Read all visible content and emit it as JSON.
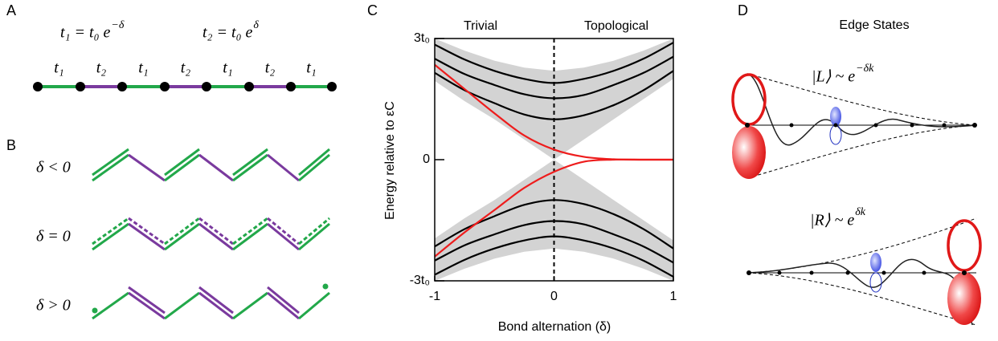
{
  "panel_labels": [
    "A",
    "B",
    "C",
    "D"
  ],
  "panel_a": {
    "eq1": {
      "base": "t₁ = t₀ e",
      "exponent": "−δ"
    },
    "eq2": {
      "base": "t₂ = t₀ e",
      "exponent": "δ"
    },
    "bond_labels": [
      "t₁",
      "t₂",
      "t₁",
      "t₂",
      "t₁",
      "t₂",
      "t₁"
    ]
  },
  "panel_b": {
    "rows": [
      "δ < 0",
      "δ = 0",
      "δ > 0"
    ]
  },
  "chart_data": {
    "type": "line",
    "top_labels": [
      "Trivial",
      "Topological"
    ],
    "xlabel": "Bond alternation (δ)",
    "ylabel": "Energy relative to εC",
    "x": [
      -1,
      -0.75,
      -0.5,
      -0.25,
      0,
      0.25,
      0.5,
      0.75,
      1
    ],
    "xlim": [
      -1,
      1
    ],
    "xticks": [
      -1,
      0,
      1
    ],
    "ylim": [
      -3,
      3
    ],
    "yticks": [
      {
        "value": 3,
        "label": "3t₀"
      },
      0,
      {
        "value": -3,
        "label": "-3t₀"
      }
    ],
    "bands": [
      {
        "color": "#d3d3d3",
        "upper": [
          3.0,
          2.7,
          2.45,
          2.28,
          2.2,
          2.28,
          2.45,
          2.7,
          3.0
        ],
        "lower": [
          1.95,
          1.45,
          1.0,
          0.5,
          0,
          0.5,
          1.0,
          1.5,
          2.0
        ]
      },
      {
        "color": "#d3d3d3",
        "upper": [
          -1.95,
          -1.45,
          -1.0,
          -0.5,
          0,
          -0.5,
          -1.0,
          -1.5,
          -2.0
        ],
        "lower": [
          -3.0,
          -2.7,
          -2.45,
          -2.28,
          -2.2,
          -2.28,
          -2.45,
          -2.7,
          -3.0
        ]
      }
    ],
    "series": [
      {
        "color": "#000000",
        "values": [
          2.85,
          2.48,
          2.2,
          2.0,
          1.9,
          2.0,
          2.2,
          2.5,
          2.9
        ]
      },
      {
        "color": "#000000",
        "values": [
          2.5,
          2.12,
          1.85,
          1.62,
          1.52,
          1.6,
          1.85,
          2.15,
          2.55
        ]
      },
      {
        "color": "#000000",
        "values": [
          2.15,
          1.72,
          1.4,
          1.12,
          1.0,
          1.1,
          1.35,
          1.72,
          2.2
        ]
      },
      {
        "color": "#000000",
        "values": [
          -2.15,
          -1.72,
          -1.4,
          -1.12,
          -1.0,
          -1.1,
          -1.35,
          -1.72,
          -2.2
        ]
      },
      {
        "color": "#000000",
        "values": [
          -2.5,
          -2.12,
          -1.85,
          -1.62,
          -1.52,
          -1.6,
          -1.85,
          -2.15,
          -2.55
        ]
      },
      {
        "color": "#000000",
        "values": [
          -2.85,
          -2.48,
          -2.2,
          -2.0,
          -1.9,
          -2.0,
          -2.2,
          -2.5,
          -2.9
        ]
      },
      {
        "color": "#ee1c1c",
        "values": [
          2.35,
          1.75,
          1.15,
          0.6,
          0.25,
          0.07,
          0.01,
          0,
          0
        ]
      },
      {
        "color": "#ee1c1c",
        "values": [
          -2.4,
          -1.8,
          -1.25,
          -0.7,
          -0.3,
          -0.05,
          0,
          0,
          0
        ]
      }
    ]
  },
  "panel_d": {
    "title": "Edge States",
    "left": {
      "base": "|L⟩ ~ e",
      "exponent": "−δk"
    },
    "right": {
      "base": "|R⟩ ~ e",
      "exponent": "δk"
    }
  }
}
